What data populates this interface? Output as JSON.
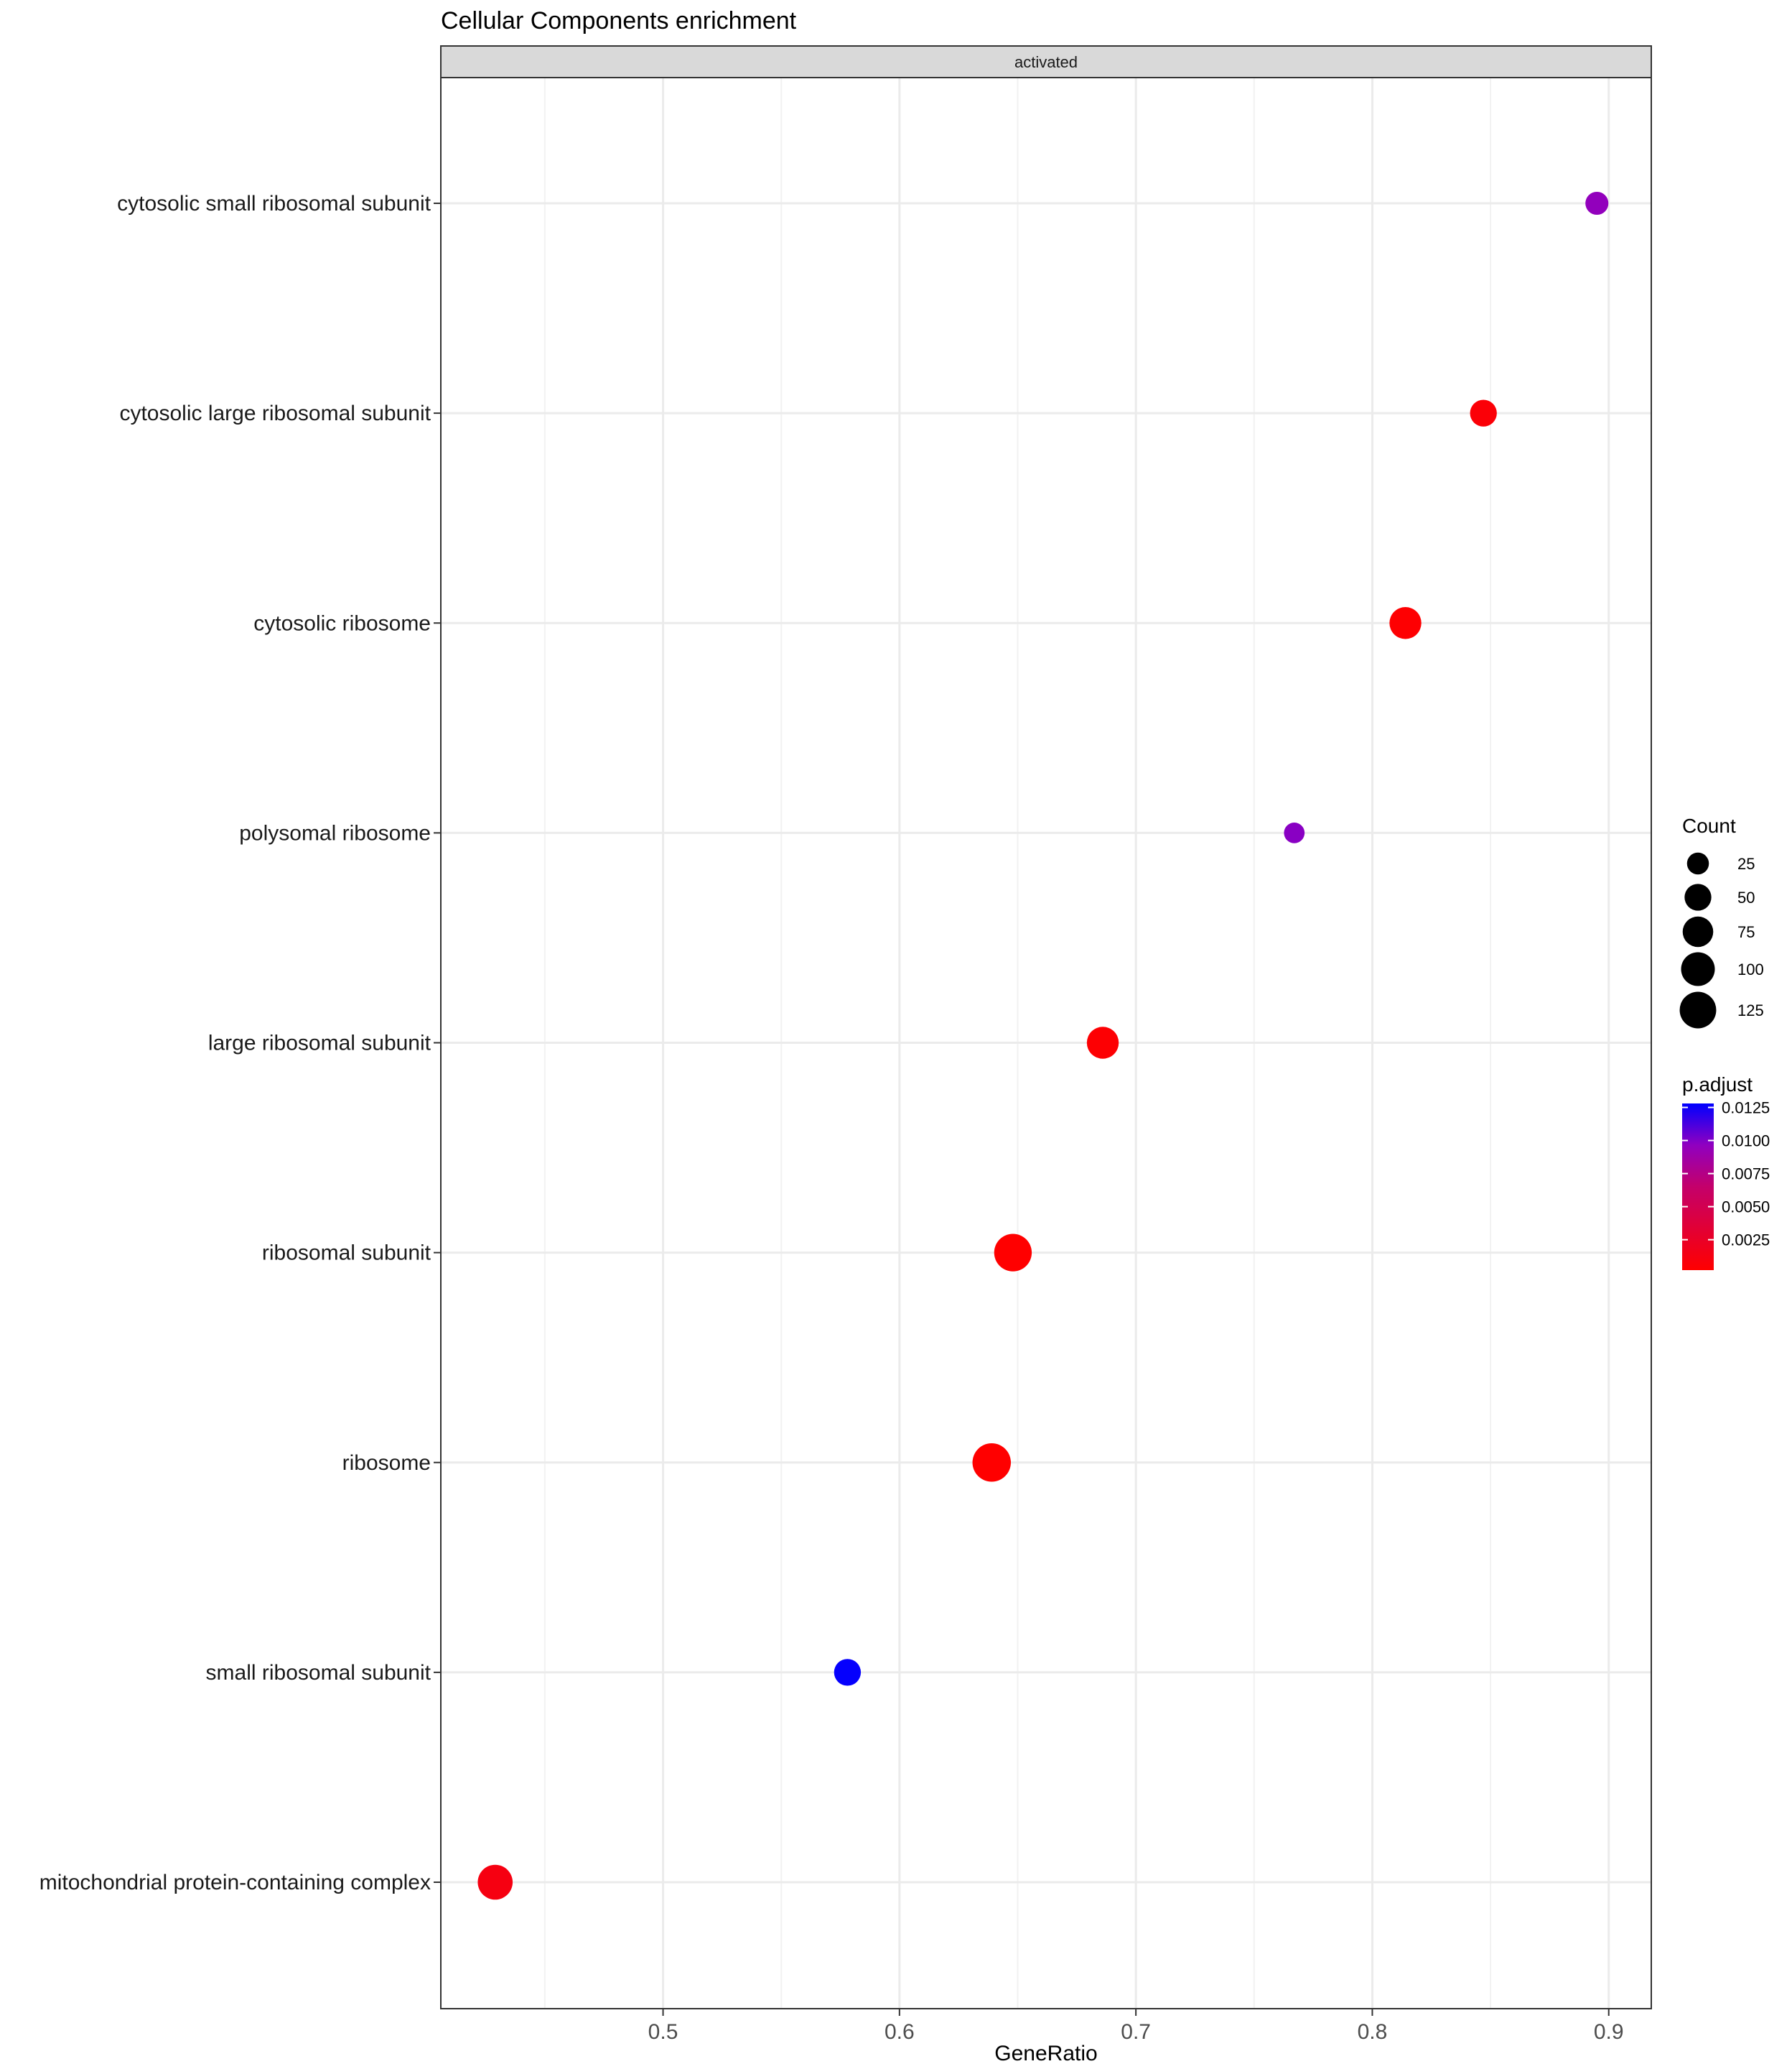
{
  "chart_data": {
    "type": "scatter",
    "title": "Cellular Components enrichment",
    "facet_label": "activated",
    "xlabel": "GeneRatio",
    "ylabel": "",
    "xlim": [
      0.406,
      0.918
    ],
    "xticks": [
      0.5,
      0.6,
      0.7,
      0.8,
      0.9
    ],
    "xtick_labels": [
      "0.5",
      "0.6",
      "0.7",
      "0.8",
      "0.9"
    ],
    "grid": true,
    "categories": [
      "cytosolic small ribosomal subunit",
      "cytosolic large ribosomal subunit",
      "cytosolic ribosome",
      "polysomal ribosome",
      "large ribosomal subunit",
      "ribosomal subunit",
      "ribosome",
      "small ribosomal subunit",
      "mitochondrial protein-containing complex"
    ],
    "points": [
      {
        "term": "cytosolic small ribosomal subunit",
        "GeneRatio": 0.895,
        "Count": 30,
        "p_adjust": 0.0095
      },
      {
        "term": "cytosolic large ribosomal subunit",
        "GeneRatio": 0.847,
        "Count": 50,
        "p_adjust": 0.0006
      },
      {
        "term": "cytosolic ribosome",
        "GeneRatio": 0.814,
        "Count": 85,
        "p_adjust": 0.0003
      },
      {
        "term": "polysomal ribosome",
        "GeneRatio": 0.767,
        "Count": 20,
        "p_adjust": 0.0098
      },
      {
        "term": "large ribosomal subunit",
        "GeneRatio": 0.686,
        "Count": 85,
        "p_adjust": 0.0004
      },
      {
        "term": "ribosomal subunit",
        "GeneRatio": 0.648,
        "Count": 135,
        "p_adjust": 0.0002
      },
      {
        "term": "ribosome",
        "GeneRatio": 0.639,
        "Count": 143,
        "p_adjust": 0.0002
      },
      {
        "term": "small ribosomal subunit",
        "GeneRatio": 0.578,
        "Count": 50,
        "p_adjust": 0.0127
      },
      {
        "term": "mitochondrial protein-containing complex",
        "GeneRatio": 0.429,
        "Count": 110,
        "p_adjust": 0.0012
      }
    ],
    "size_legend": {
      "title": "Count",
      "breaks": [
        25,
        50,
        75,
        100,
        125
      ],
      "labels": [
        "25",
        "50",
        "75",
        "100",
        "125"
      ]
    },
    "color_legend": {
      "title": "p.adjust",
      "range": [
        0.0002,
        0.0128
      ],
      "breaks": [
        0.0125,
        0.01,
        0.0075,
        0.005,
        0.0025
      ],
      "labels": [
        "0.0125",
        "0.0100",
        "0.0075",
        "0.0050",
        "0.0025"
      ],
      "low_color": "#ff0000",
      "high_color": "#0000ff"
    }
  }
}
